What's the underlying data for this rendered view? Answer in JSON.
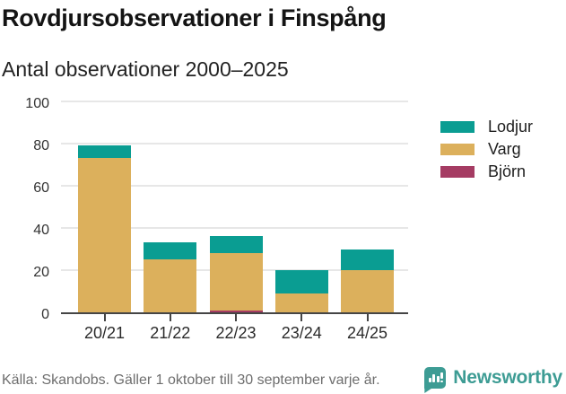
{
  "header": {
    "title": "Rovdjursobservationer i Finspång",
    "subtitle": "Antal observationer 2000–2025"
  },
  "chart_data": {
    "type": "bar",
    "stacked": true,
    "title": "Rovdjursobservationer i Finspång",
    "subtitle": "Antal observationer 2000–2025",
    "categories": [
      "20/21",
      "21/22",
      "22/23",
      "23/24",
      "24/25"
    ],
    "series": [
      {
        "name": "Lodjur",
        "color": "#0a9d92",
        "values": [
          6,
          8,
          8,
          11,
          10
        ]
      },
      {
        "name": "Varg",
        "color": "#dcb05c",
        "values": [
          73,
          25,
          27,
          9,
          20
        ]
      },
      {
        "name": "Björn",
        "color": "#a53c63",
        "values": [
          0,
          0,
          1,
          0,
          0
        ]
      }
    ],
    "totals": [
      79,
      33,
      36,
      20,
      30
    ],
    "xlabel": "",
    "ylabel": "",
    "ylim": [
      0,
      100
    ],
    "yticks": [
      0,
      20,
      40,
      60,
      80,
      100
    ],
    "grid": true,
    "legend_position": "right"
  },
  "colors": {
    "lodjur": "#0a9d92",
    "varg": "#dcb05c",
    "bjorn": "#a53c63",
    "brand_teal": "#3d9c94",
    "gridline": "#e7e7e7",
    "axis": "#454545"
  },
  "footer": {
    "source": "Källa: Skandobs. Gäller 1 oktober till 30 september varje år.",
    "brand": "Newsworthy"
  }
}
